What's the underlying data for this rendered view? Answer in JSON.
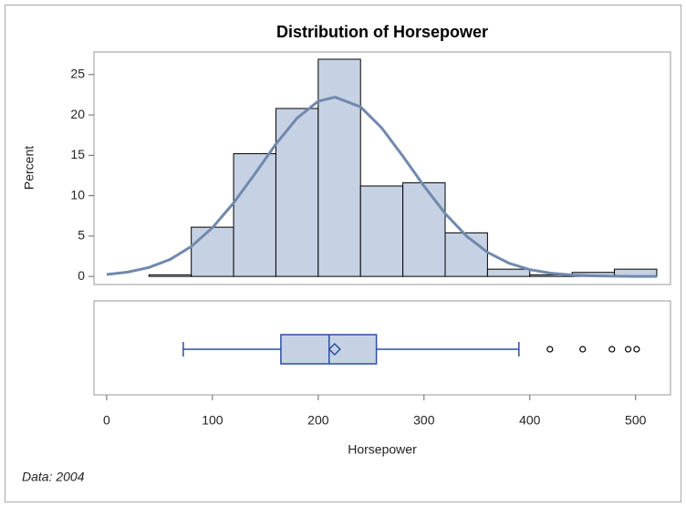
{
  "chart_data": [
    {
      "type": "histogram",
      "title": "Distribution of Horsepower",
      "ylabel": "Percent",
      "bins": [
        40,
        80,
        120,
        160,
        200,
        240,
        280,
        320,
        360,
        400,
        440,
        480,
        520
      ],
      "values": [
        0.2,
        6.1,
        15.2,
        20.8,
        26.9,
        11.2,
        11.6,
        5.4,
        0.9,
        0.2,
        0.5,
        0.9
      ],
      "color": "#c6d2e3",
      "edgecolor": "#000000",
      "xlim": [
        -12,
        533
      ],
      "ylim": [
        -1,
        27.8
      ],
      "yticks": [
        0,
        5,
        10,
        15,
        20,
        25
      ],
      "density": {
        "color": "#7189ad",
        "x": [
          0,
          20,
          40,
          60,
          80,
          100,
          120,
          140,
          160,
          180,
          200,
          216,
          240,
          260,
          280,
          300,
          320,
          340,
          360,
          380,
          400,
          420,
          440,
          460,
          480,
          500,
          520
        ],
        "values": [
          0.24,
          0.54,
          1.11,
          2.11,
          3.71,
          6.04,
          9.11,
          12.7,
          16.4,
          19.6,
          21.7,
          22.2,
          21.0,
          18.4,
          14.9,
          11.2,
          7.8,
          5.02,
          2.99,
          1.65,
          0.84,
          0.4,
          0.17,
          0.07,
          0.03,
          0.01,
          0.0
        ]
      }
    },
    {
      "type": "box",
      "xlabel": "Horsepower",
      "footnote": "Data: 2004",
      "xlim": [
        -12,
        533
      ],
      "xticks": [
        0,
        100,
        200,
        300,
        400,
        500
      ],
      "whislo": 72.4,
      "q1": 164.7,
      "med": 210.3,
      "q3": 255,
      "whishi": 389.7,
      "mean": 215.5,
      "fliers": [
        419,
        450,
        477.6,
        493,
        501
      ],
      "color": "#2b4fa0"
    }
  ]
}
